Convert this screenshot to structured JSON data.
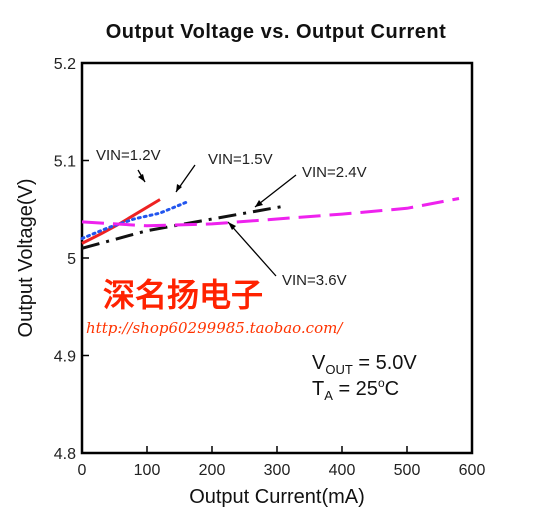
{
  "chart_data": {
    "type": "line",
    "title": "Output Voltage vs. Output Current",
    "xlabel": "Output Current(mA)",
    "ylabel": "Output Voltage(V)",
    "xlim": [
      0,
      600
    ],
    "ylim": [
      4.8,
      5.2
    ],
    "xticks": [
      "0",
      "100",
      "200",
      "300",
      "400",
      "500",
      "600"
    ],
    "yticks": [
      "4.8",
      "4.9",
      "5",
      "5.1",
      "5.2"
    ],
    "grid": false,
    "series": [
      {
        "name": "VIN=1.2V",
        "color": "#ee2222",
        "dash": "solid",
        "x": [
          0,
          30,
          60,
          90,
          120
        ],
        "y": [
          5.015,
          5.025,
          5.036,
          5.048,
          5.06
        ]
      },
      {
        "name": "VIN=1.5V",
        "color": "#2255ee",
        "dash": "dotted",
        "x": [
          0,
          40,
          80,
          120,
          160
        ],
        "y": [
          5.02,
          5.031,
          5.04,
          5.046,
          5.057
        ]
      },
      {
        "name": "VIN=2.4V",
        "color": "#111111",
        "dash": "dashdot",
        "x": [
          0,
          100,
          200,
          310
        ],
        "y": [
          5.01,
          5.028,
          5.04,
          5.053
        ]
      },
      {
        "name": "VIN=3.6V",
        "color": "#ee22ee",
        "dash": "dashed",
        "x": [
          0,
          100,
          200,
          300,
          400,
          500,
          580
        ],
        "y": [
          5.037,
          5.033,
          5.035,
          5.04,
          5.045,
          5.051,
          5.061
        ]
      }
    ],
    "annotations": [
      {
        "text": "VIN=1.2V"
      },
      {
        "text": "VIN=1.5V"
      },
      {
        "text": "VIN=2.4V"
      },
      {
        "text": "VIN=3.6V"
      }
    ],
    "conditions": {
      "vout_prefix": "V",
      "vout_sub": "OUT",
      "vout_value": " = 5.0V",
      "ta_prefix": "T",
      "ta_sub": "A",
      "ta_value": " = 25",
      "ta_sup": "o",
      "ta_unit": "C"
    }
  },
  "watermark": {
    "text": "深名扬电子",
    "url": "http://shop60299985.taobao.com/"
  }
}
